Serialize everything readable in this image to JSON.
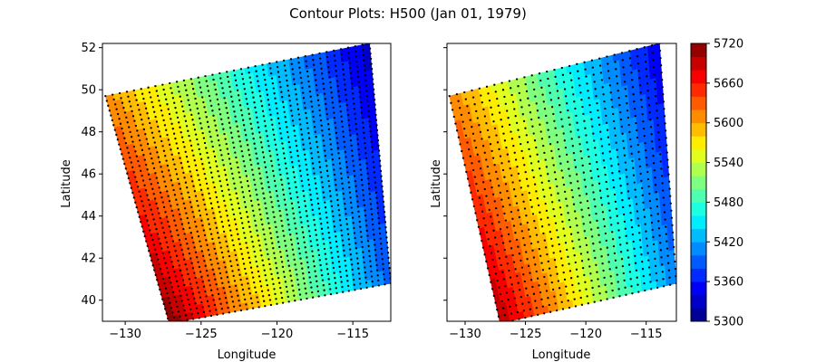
{
  "figure": {
    "title": "Contour Plots: H500 (Jan 01, 1979)"
  },
  "colormap": {
    "name": "jet",
    "levels": [
      5300,
      5320,
      5340,
      5360,
      5380,
      5400,
      5420,
      5440,
      5460,
      5480,
      5500,
      5520,
      5540,
      5560,
      5580,
      5600,
      5620,
      5640,
      5660,
      5680,
      5700,
      5720
    ],
    "stops": [
      "#00007f",
      "#0000ff",
      "#007fff",
      "#00ffff",
      "#7fff7f",
      "#ffff00",
      "#ff7f00",
      "#ff0000",
      "#7f0000"
    ],
    "point_marker_color": "#000000"
  },
  "chart_data": [
    {
      "type": "heatmap",
      "title": "",
      "xlabel": "Longitude",
      "ylabel": "Latitude",
      "xlim": [
        -131.5,
        -112.5
      ],
      "ylim": [
        39,
        52.2
      ],
      "xticks": [
        -130,
        -125,
        -120,
        -115
      ],
      "yticks": [
        40,
        42,
        44,
        46,
        48,
        50,
        52
      ],
      "show_yticklabels": true,
      "show_points": true,
      "domain_corners": [
        [
          -131.3,
          49.7
        ],
        [
          -113.9,
          52.2
        ],
        [
          -112.5,
          40.8
        ],
        [
          -127.1,
          38.9
        ]
      ],
      "field_corner_values": {
        "nw": 5610,
        "ne": 5330,
        "se": 5390,
        "sw": 5715
      },
      "grid_points": {
        "rows": 48,
        "cols": 38
      }
    },
    {
      "type": "heatmap",
      "title": "",
      "xlabel": "Longitude",
      "ylabel": "Latitude",
      "xlim": [
        -131.5,
        -112.5
      ],
      "ylim": [
        39,
        52.2
      ],
      "xticks": [
        -130,
        -125,
        -120,
        -115
      ],
      "yticks": [
        40,
        42,
        44,
        46,
        48,
        50,
        52
      ],
      "show_yticklabels": false,
      "show_points": true,
      "domain_corners": [
        [
          -131.3,
          49.7
        ],
        [
          -113.9,
          52.2
        ],
        [
          -112.5,
          40.8
        ],
        [
          -127.1,
          38.9
        ]
      ],
      "field_corner_values": {
        "nw": 5615,
        "ne": 5340,
        "se": 5405,
        "sw": 5700
      },
      "grid_points": {
        "rows": 34,
        "cols": 29
      }
    }
  ],
  "colorbar": {
    "ticks": [
      5300,
      5360,
      5420,
      5480,
      5540,
      5600,
      5660,
      5720
    ],
    "range": [
      5300,
      5720
    ]
  }
}
